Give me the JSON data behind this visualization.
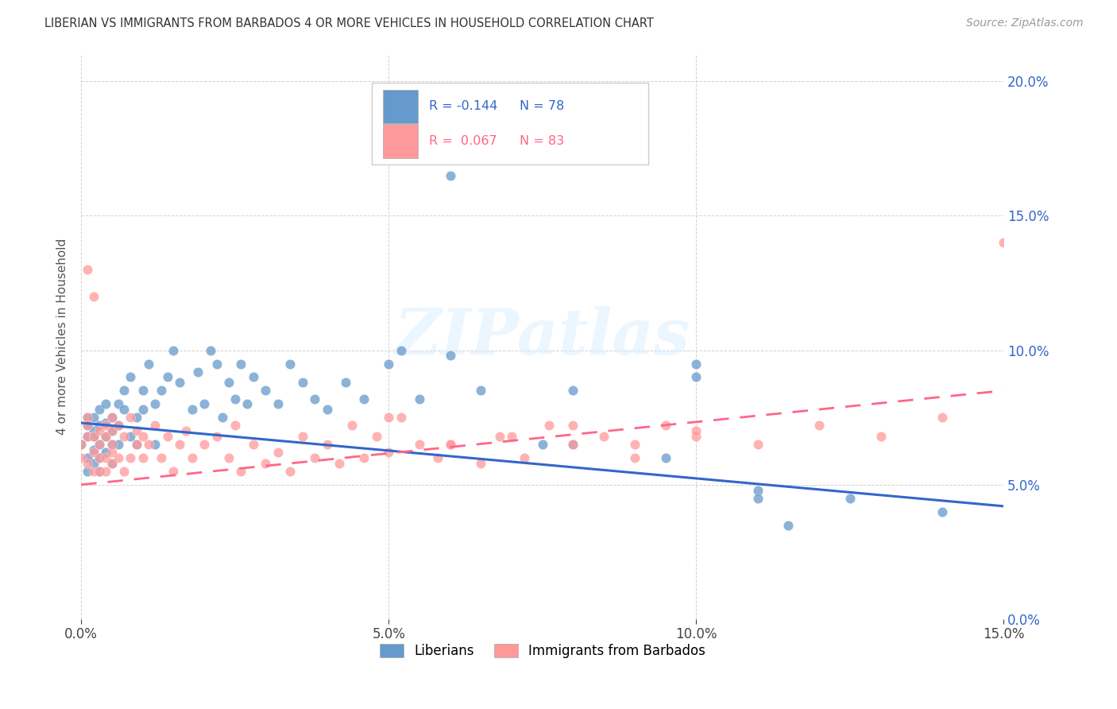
{
  "title": "LIBERIAN VS IMMIGRANTS FROM BARBADOS 4 OR MORE VEHICLES IN HOUSEHOLD CORRELATION CHART",
  "source": "Source: ZipAtlas.com",
  "ylabel": "4 or more Vehicles in Household",
  "xlim": [
    0.0,
    0.15
  ],
  "ylim": [
    0.0,
    0.21
  ],
  "liberian_color": "#6699CC",
  "barbados_color": "#FF9999",
  "liberian_line_color": "#3366CC",
  "barbados_line_color": "#FF6688",
  "watermark": "ZIPatlas",
  "liberian_R": -0.144,
  "liberian_N": 78,
  "barbados_R": 0.067,
  "barbados_N": 83,
  "lib_line_x0": 0.0,
  "lib_line_y0": 0.073,
  "lib_line_x1": 0.15,
  "lib_line_y1": 0.042,
  "barb_line_x0": 0.0,
  "barb_line_y0": 0.05,
  "barb_line_x1": 0.15,
  "barb_line_y1": 0.085,
  "liberian_scatter_x": [
    0.0,
    0.001,
    0.001,
    0.001,
    0.001,
    0.001,
    0.002,
    0.002,
    0.002,
    0.002,
    0.002,
    0.003,
    0.003,
    0.003,
    0.003,
    0.003,
    0.004,
    0.004,
    0.004,
    0.004,
    0.005,
    0.005,
    0.005,
    0.005,
    0.006,
    0.006,
    0.006,
    0.007,
    0.007,
    0.008,
    0.008,
    0.009,
    0.009,
    0.01,
    0.01,
    0.011,
    0.012,
    0.012,
    0.013,
    0.014,
    0.015,
    0.016,
    0.018,
    0.019,
    0.02,
    0.021,
    0.022,
    0.023,
    0.024,
    0.025,
    0.026,
    0.027,
    0.028,
    0.03,
    0.032,
    0.034,
    0.036,
    0.038,
    0.04,
    0.043,
    0.046,
    0.05,
    0.055,
    0.06,
    0.065,
    0.052,
    0.075,
    0.08,
    0.095,
    0.1,
    0.11,
    0.115,
    0.06,
    0.08,
    0.1,
    0.11,
    0.125,
    0.14
  ],
  "liberian_scatter_y": [
    0.065,
    0.068,
    0.072,
    0.075,
    0.06,
    0.055,
    0.07,
    0.063,
    0.075,
    0.068,
    0.058,
    0.072,
    0.065,
    0.078,
    0.06,
    0.055,
    0.073,
    0.068,
    0.08,
    0.062,
    0.07,
    0.075,
    0.065,
    0.058,
    0.08,
    0.072,
    0.065,
    0.085,
    0.078,
    0.09,
    0.068,
    0.075,
    0.065,
    0.085,
    0.078,
    0.095,
    0.08,
    0.065,
    0.085,
    0.09,
    0.1,
    0.088,
    0.078,
    0.092,
    0.08,
    0.1,
    0.095,
    0.075,
    0.088,
    0.082,
    0.095,
    0.08,
    0.09,
    0.085,
    0.08,
    0.095,
    0.088,
    0.082,
    0.078,
    0.088,
    0.082,
    0.095,
    0.082,
    0.098,
    0.085,
    0.1,
    0.065,
    0.065,
    0.06,
    0.095,
    0.048,
    0.035,
    0.165,
    0.085,
    0.09,
    0.045,
    0.045,
    0.04
  ],
  "barbados_scatter_x": [
    0.0,
    0.0,
    0.001,
    0.001,
    0.001,
    0.001,
    0.002,
    0.002,
    0.002,
    0.003,
    0.003,
    0.003,
    0.003,
    0.004,
    0.004,
    0.004,
    0.004,
    0.005,
    0.005,
    0.005,
    0.005,
    0.005,
    0.006,
    0.006,
    0.007,
    0.007,
    0.008,
    0.008,
    0.009,
    0.009,
    0.01,
    0.01,
    0.011,
    0.012,
    0.013,
    0.014,
    0.015,
    0.016,
    0.017,
    0.018,
    0.02,
    0.022,
    0.024,
    0.025,
    0.026,
    0.028,
    0.03,
    0.032,
    0.034,
    0.036,
    0.038,
    0.04,
    0.042,
    0.044,
    0.046,
    0.048,
    0.05,
    0.052,
    0.055,
    0.058,
    0.06,
    0.065,
    0.068,
    0.072,
    0.076,
    0.08,
    0.085,
    0.09,
    0.095,
    0.1,
    0.05,
    0.06,
    0.07,
    0.08,
    0.09,
    0.1,
    0.11,
    0.12,
    0.13,
    0.14,
    0.001,
    0.002,
    0.15
  ],
  "barbados_scatter_y": [
    0.065,
    0.06,
    0.075,
    0.068,
    0.058,
    0.072,
    0.062,
    0.068,
    0.055,
    0.07,
    0.065,
    0.055,
    0.06,
    0.072,
    0.06,
    0.068,
    0.055,
    0.07,
    0.062,
    0.075,
    0.058,
    0.065,
    0.072,
    0.06,
    0.068,
    0.055,
    0.075,
    0.06,
    0.065,
    0.07,
    0.06,
    0.068,
    0.065,
    0.072,
    0.06,
    0.068,
    0.055,
    0.065,
    0.07,
    0.06,
    0.065,
    0.068,
    0.06,
    0.072,
    0.055,
    0.065,
    0.058,
    0.062,
    0.055,
    0.068,
    0.06,
    0.065,
    0.058,
    0.072,
    0.06,
    0.068,
    0.062,
    0.075,
    0.065,
    0.06,
    0.065,
    0.058,
    0.068,
    0.06,
    0.072,
    0.065,
    0.068,
    0.06,
    0.072,
    0.068,
    0.075,
    0.065,
    0.068,
    0.072,
    0.065,
    0.07,
    0.065,
    0.072,
    0.068,
    0.075,
    0.13,
    0.12,
    0.14
  ]
}
